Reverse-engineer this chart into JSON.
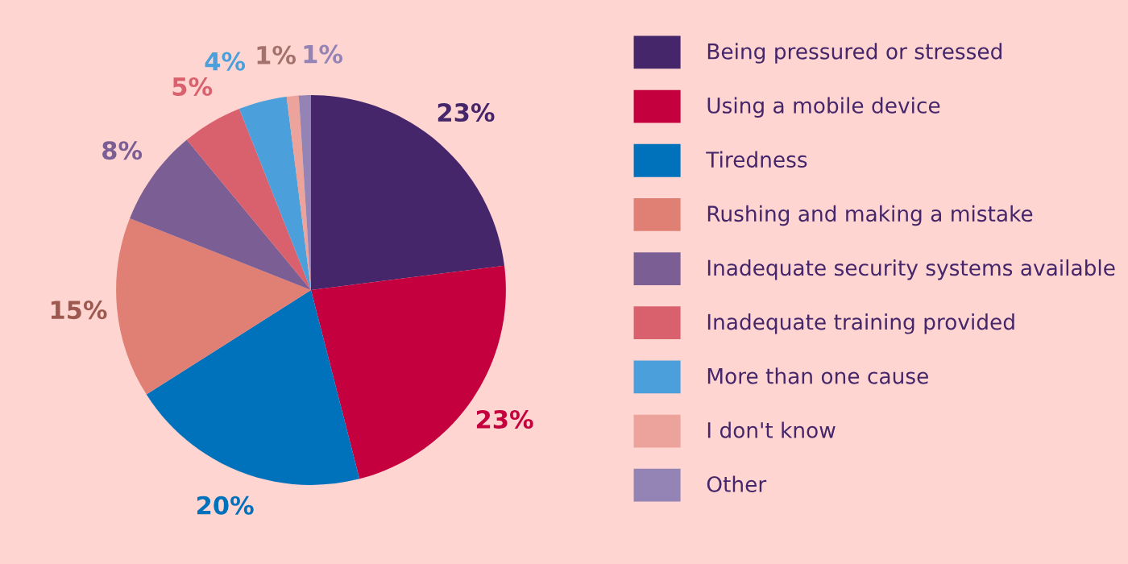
{
  "chart_data": {
    "type": "pie",
    "categories": [
      "Being pressured or stressed",
      "Using a mobile device",
      "Tiredness",
      "Rushing and making a mistake",
      "Inadequate security systems available",
      "Inadequate training provided",
      "More than one cause",
      "I don't know",
      "Other"
    ],
    "values": [
      23,
      23,
      20,
      15,
      8,
      5,
      4,
      1,
      1
    ],
    "value_labels": [
      "23%",
      "23%",
      "20%",
      "15%",
      "8%",
      "5%",
      "4%",
      "1%",
      "1%"
    ],
    "colors": [
      "#45266a",
      "#c4003f",
      "#0072bc",
      "#e07f73",
      "#7a5e94",
      "#d9606d",
      "#4ba0dc",
      "#eba39c",
      "#9384b5"
    ],
    "legend": "right"
  }
}
